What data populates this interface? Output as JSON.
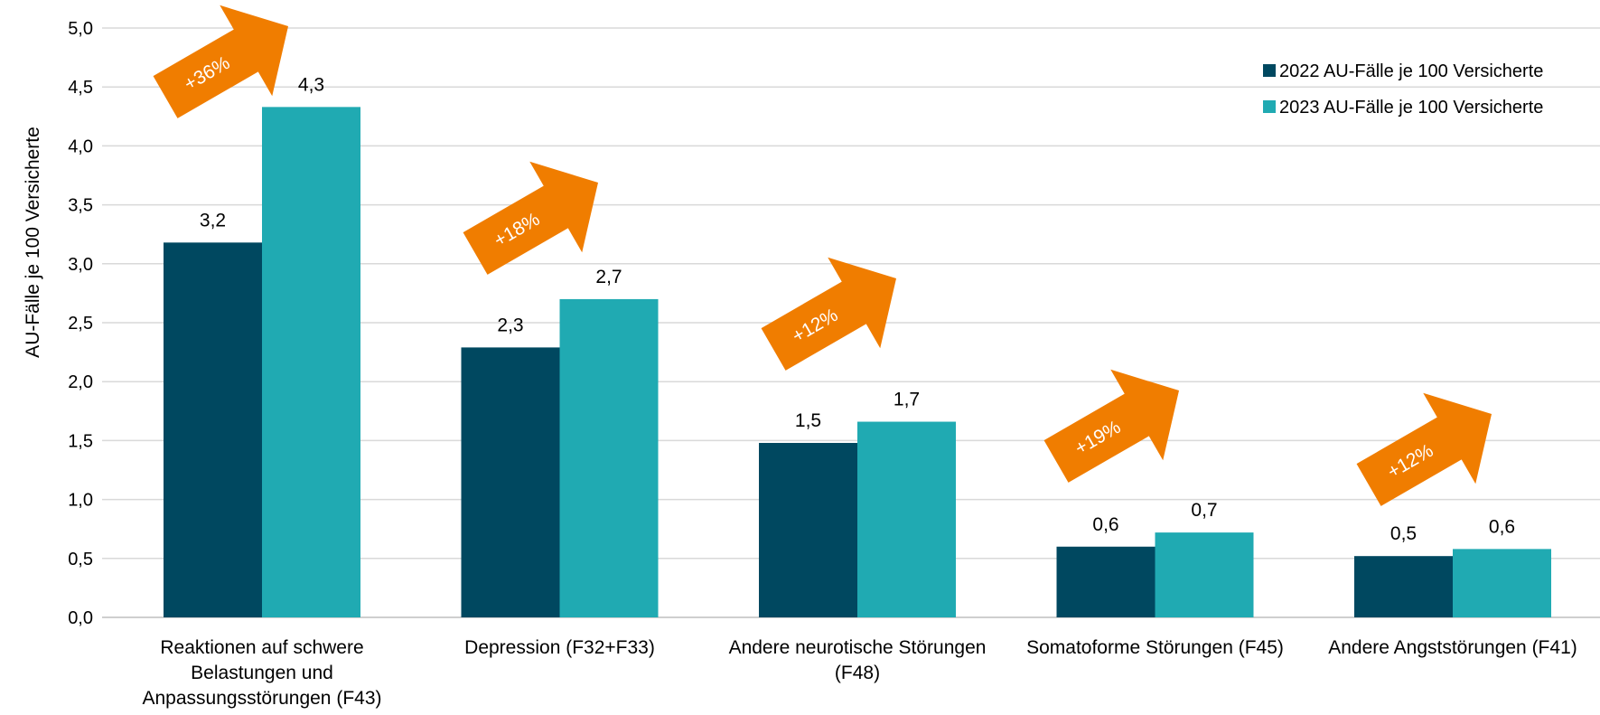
{
  "colors": {
    "series_2022": "#004860",
    "series_2023": "#20aab2",
    "arrow": "#f07d00",
    "grid": "#d9d9d9",
    "axis": "#bfbfbf"
  },
  "chart_data": {
    "type": "bar",
    "ylabel": "AU-Fälle je 100 Versicherte",
    "ylim": [
      0,
      5
    ],
    "ytick_step": 0.5,
    "y_tick_labels": [
      "0,0",
      "0,5",
      "1,0",
      "1,5",
      "2,0",
      "2,5",
      "3,0",
      "3,5",
      "4,0",
      "4,5",
      "5,0"
    ],
    "grid": true,
    "legend_position": "top-right",
    "categories": [
      [
        "Reaktionen auf schwere",
        "Belastungen und",
        "Anpassungsstörungen (F43)"
      ],
      [
        "Depression (F32+F33)"
      ],
      [
        "Andere neurotische Störungen",
        "(F48)"
      ],
      [
        "Somatoforme Störungen (F45)"
      ],
      [
        "Andere Angststörungen (F41)"
      ]
    ],
    "series": [
      {
        "name": "2022 AU-Fälle je 100 Versicherte",
        "values": [
          3.18,
          2.29,
          1.48,
          0.6,
          0.52
        ],
        "labels": [
          "3,2",
          "2,3",
          "1,5",
          "0,6",
          "0,5"
        ]
      },
      {
        "name": "2023 AU-Fälle je 100 Versicherte",
        "values": [
          4.33,
          2.7,
          1.66,
          0.72,
          0.58
        ],
        "labels": [
          "4,3",
          "2,7",
          "1,7",
          "0,7",
          "0,6"
        ]
      }
    ],
    "annotations": [
      "+36%",
      "+18%",
      "+12%",
      "+19%",
      "+12%"
    ]
  }
}
